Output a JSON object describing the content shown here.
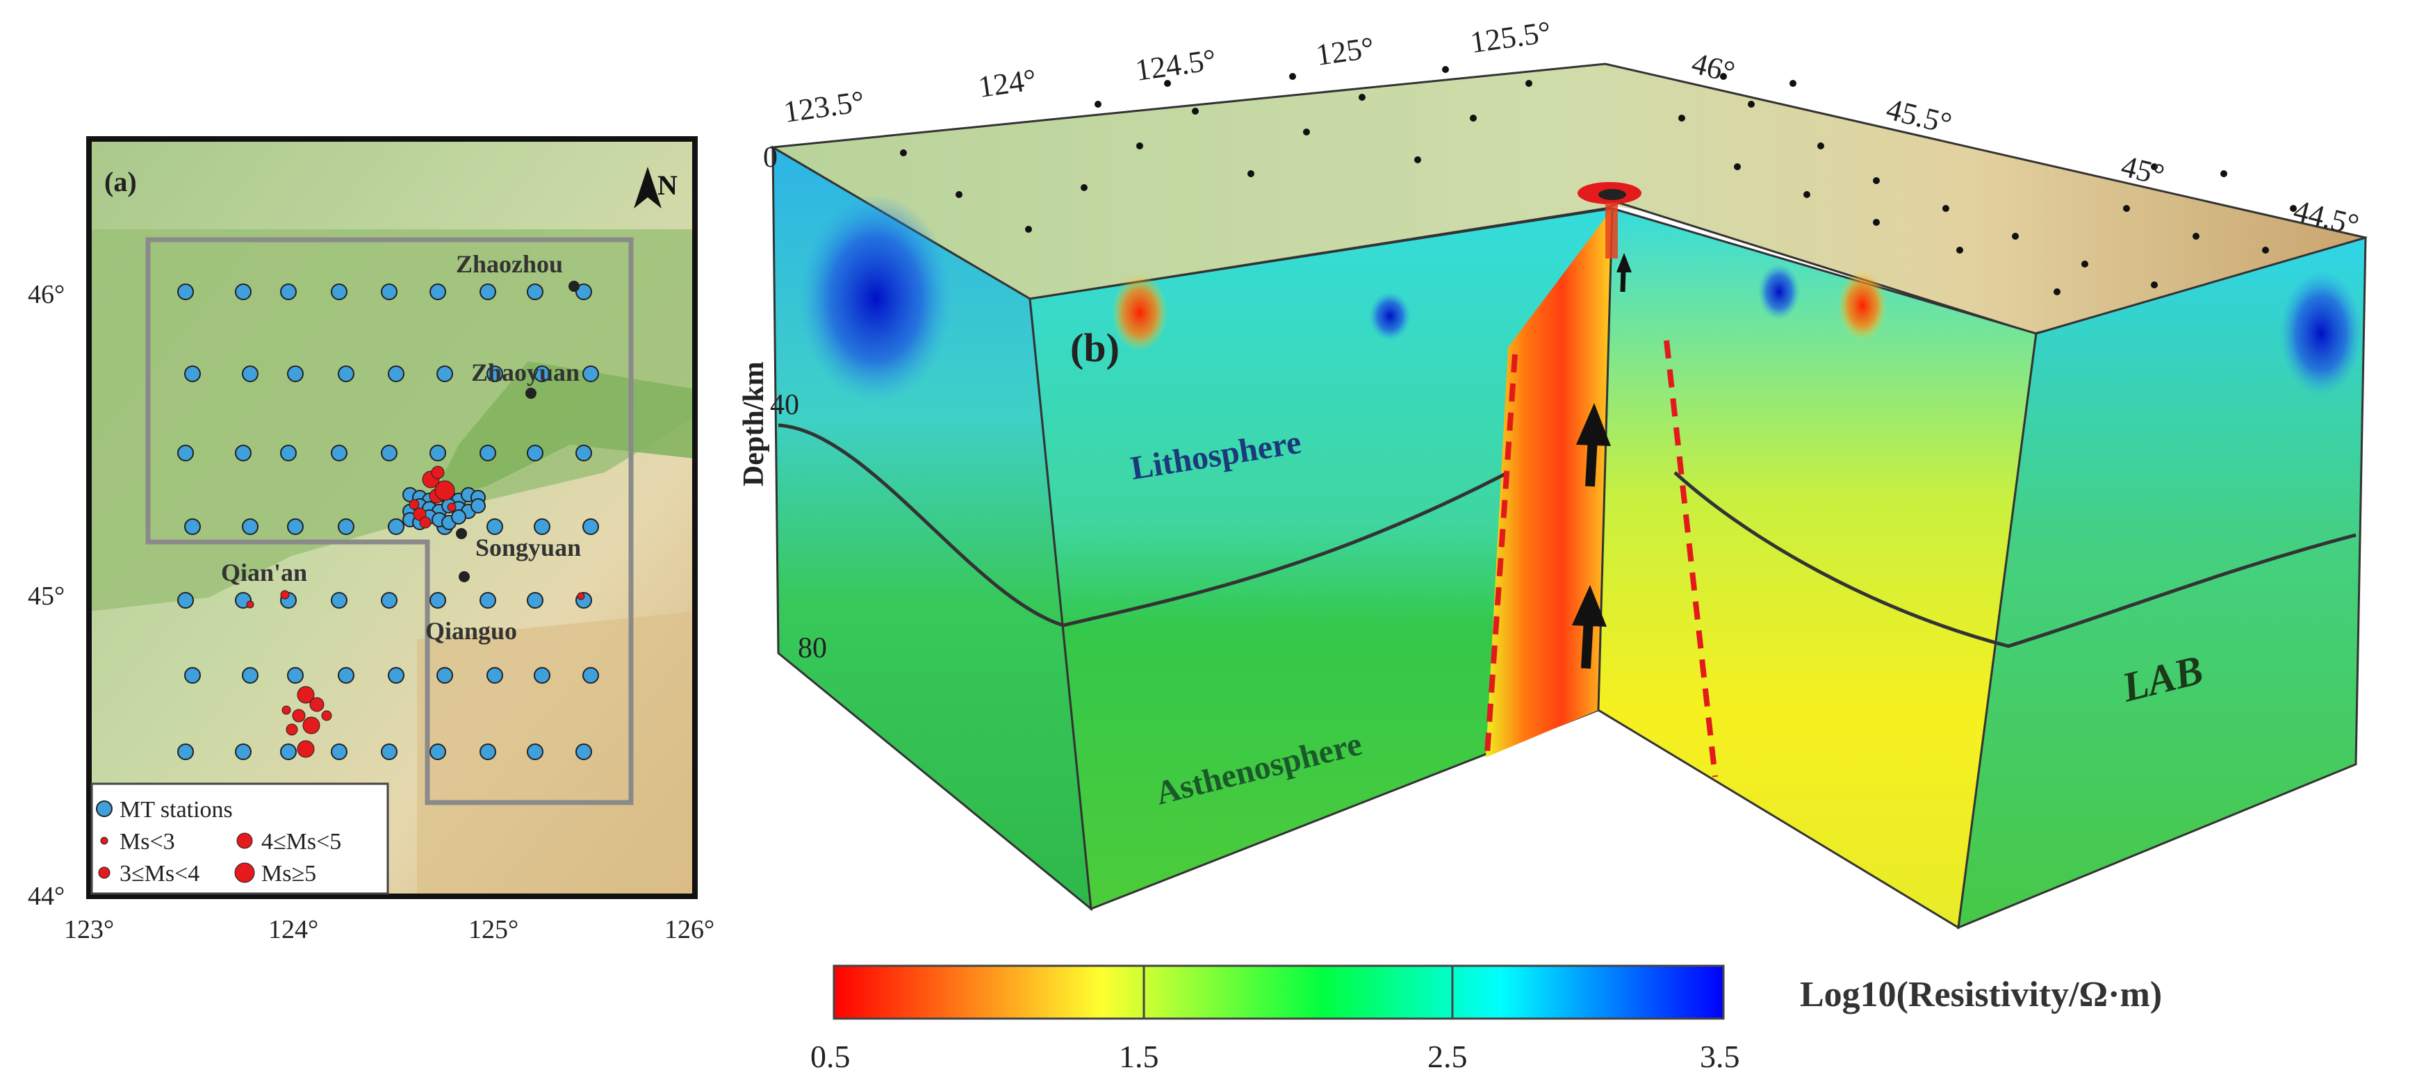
{
  "panel_a": {
    "label": "(a)",
    "north_label": "N",
    "lat_ticks": [
      "46°",
      "45°",
      "44°"
    ],
    "lon_ticks": [
      "123°",
      "124°",
      "125°",
      "126°"
    ],
    "places": [
      {
        "name": "Zhaozhou"
      },
      {
        "name": "Zhaoyuan"
      },
      {
        "name": "Songyuan"
      },
      {
        "name": "Qian'an"
      },
      {
        "name": "Qianguo"
      }
    ],
    "legend": {
      "mt": "MT stations",
      "ms1": "Ms<3",
      "ms2": "3≤Ms<4",
      "ms3": "4≤Ms<5",
      "ms4": "Ms≥5"
    },
    "colors": {
      "station": "#3fa0dc",
      "quake": "#e41a1c",
      "box": "#8a8a8a"
    }
  },
  "panel_b": {
    "label": "(b)",
    "top_lon_ticks": [
      "123.5°",
      "124°",
      "124.5°",
      "125°",
      "125.5°"
    ],
    "top_lat_ticks": [
      "46°",
      "45.5°",
      "45°",
      "44.5°"
    ],
    "depth_title": "Depth/km",
    "depth_ticks": [
      "0",
      "40",
      "80"
    ],
    "lithosphere": "Lithosphere",
    "asthenosphere": "Asthenosphere",
    "lab": "LAB"
  },
  "colorbar": {
    "title": "Log10(Resistivity/Ω·m)",
    "ticks": [
      "0.5",
      "1.5",
      "2.5",
      "3.5"
    ],
    "colors": [
      "#ff0000",
      "#ffff30",
      "#00ff40",
      "#00ffff",
      "#0000ff"
    ]
  }
}
